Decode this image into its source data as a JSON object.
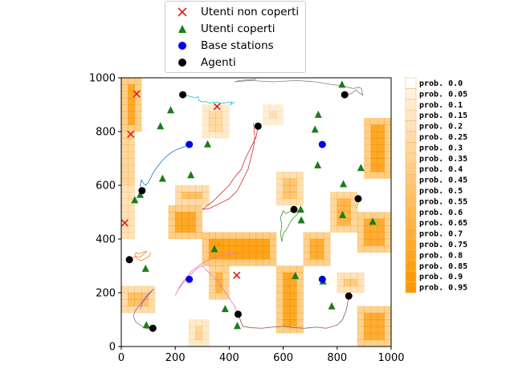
{
  "legend": {
    "items": [
      {
        "label": "Utenti non coperti",
        "marker": "x",
        "color": "#e31a1c"
      },
      {
        "label": "Utenti coperti",
        "marker": "triangle",
        "color": "#1a7d1a"
      },
      {
        "label": "Base stations",
        "marker": "circle",
        "color": "#0000ee"
      },
      {
        "label": "Agenti",
        "marker": "circle",
        "color": "#000000"
      }
    ]
  },
  "chart_data": {
    "type": "scatter",
    "xlim": [
      0,
      1000
    ],
    "ylim": [
      0,
      1000
    ],
    "x_ticks": [
      "0",
      "200",
      "400",
      "600",
      "800",
      "1000"
    ],
    "y_ticks": [
      "0",
      "200",
      "400",
      "600",
      "800",
      "1000"
    ],
    "grid": false,
    "heatmap": {
      "cell_size": 25,
      "base_color": "#ff9900",
      "high_regions": [
        {
          "x": [
            0,
            75
          ],
          "y": [
            800,
            1000
          ],
          "level": 0.85
        },
        {
          "x": [
            0,
            50
          ],
          "y": [
            600,
            800
          ],
          "level": 0.7
        },
        {
          "x": [
            0,
            50
          ],
          "y": [
            400,
            600
          ],
          "level": 0.5
        },
        {
          "x": [
            200,
            325
          ],
          "y": [
            525,
            600
          ],
          "level": 0.6
        },
        {
          "x": [
            175,
            300
          ],
          "y": [
            400,
            525
          ],
          "level": 0.85
        },
        {
          "x": [
            300,
            575
          ],
          "y": [
            300,
            425
          ],
          "level": 0.9
        },
        {
          "x": [
            325,
            400
          ],
          "y": [
            175,
            300
          ],
          "level": 0.75
        },
        {
          "x": [
            575,
            675
          ],
          "y": [
            50,
            300
          ],
          "level": 0.85
        },
        {
          "x": [
            675,
            775
          ],
          "y": [
            300,
            425
          ],
          "level": 0.8
        },
        {
          "x": [
            775,
            875
          ],
          "y": [
            425,
            575
          ],
          "level": 0.7
        },
        {
          "x": [
            875,
            1000
          ],
          "y": [
            350,
            500
          ],
          "level": 0.8
        },
        {
          "x": [
            900,
            1000
          ],
          "y": [
            625,
            850
          ],
          "level": 0.85
        },
        {
          "x": [
            800,
            900
          ],
          "y": [
            200,
            275
          ],
          "level": 0.5
        },
        {
          "x": [
            875,
            1000
          ],
          "y": [
            0,
            150
          ],
          "level": 0.8
        },
        {
          "x": [
            250,
            325
          ],
          "y": [
            0,
            100
          ],
          "level": 0.4
        },
        {
          "x": [
            0,
            125
          ],
          "y": [
            125,
            225
          ],
          "level": 0.6
        },
        {
          "x": [
            300,
            400
          ],
          "y": [
            775,
            900
          ],
          "level": 0.35
        },
        {
          "x": [
            575,
            675
          ],
          "y": [
            525,
            650
          ],
          "level": 0.55
        },
        {
          "x": [
            525,
            600
          ],
          "y": [
            825,
            900
          ],
          "level": 0.3
        }
      ],
      "colorbar_labels": [
        "prob. 0.0",
        "prob. 0.05",
        "prob. 0.1",
        "prob. 0.15",
        "prob. 0.2",
        "prob. 0.25",
        "prob. 0.3",
        "prob. 0.35",
        "prob. 0.4",
        "prob. 0.45",
        "prob. 0.5",
        "prob. 0.55",
        "prob. 0.6",
        "prob. 0.65",
        "prob. 0.7",
        "prob. 0.75",
        "prob. 0.8",
        "prob. 0.85",
        "prob. 0.9",
        "prob. 0.95"
      ]
    },
    "series": [
      {
        "name": "Utenti non coperti",
        "marker": "x",
        "color": "#e31a1c",
        "points": [
          [
            57,
            940
          ],
          [
            35,
            790
          ],
          [
            355,
            893
          ],
          [
            13,
            460
          ],
          [
            428,
            265
          ]
        ]
      },
      {
        "name": "Utenti coperti",
        "marker": "triangle",
        "color": "#1a7d1a",
        "points": [
          [
            183,
            880
          ],
          [
            145,
            820
          ],
          [
            320,
            753
          ],
          [
            153,
            625
          ],
          [
            258,
            638
          ],
          [
            50,
            545
          ],
          [
            70,
            565
          ],
          [
            90,
            290
          ],
          [
            345,
            363
          ],
          [
            93,
            80
          ],
          [
            385,
            140
          ],
          [
            430,
            77
          ],
          [
            645,
            263
          ],
          [
            665,
            510
          ],
          [
            667,
            470
          ],
          [
            748,
            243
          ],
          [
            780,
            150
          ],
          [
            730,
            863
          ],
          [
            718,
            808
          ],
          [
            728,
            675
          ],
          [
            823,
            605
          ],
          [
            820,
            490
          ],
          [
            888,
            665
          ],
          [
            932,
            465
          ],
          [
            818,
            975
          ]
        ]
      },
      {
        "name": "Base stations",
        "marker": "circle",
        "color": "#0000ee",
        "points": [
          [
            252,
            752
          ],
          [
            745,
            752
          ],
          [
            252,
            250
          ],
          [
            745,
            250
          ]
        ]
      },
      {
        "name": "Agenti",
        "marker": "circle",
        "color": "#000000",
        "points": [
          [
            228,
            937
          ],
          [
            507,
            820
          ],
          [
            77,
            580
          ],
          [
            30,
            323
          ],
          [
            117,
            68
          ],
          [
            433,
            120
          ],
          [
            640,
            510
          ],
          [
            878,
            550
          ],
          [
            843,
            188
          ],
          [
            828,
            937
          ]
        ]
      }
    ],
    "trajectories": [
      {
        "color": "#17becf",
        "points": [
          [
            228,
            937
          ],
          [
            260,
            930
          ],
          [
            275,
            925
          ],
          [
            285,
            930
          ],
          [
            288,
            915
          ],
          [
            300,
            910
          ],
          [
            310,
            912
          ],
          [
            330,
            905
          ],
          [
            340,
            910
          ],
          [
            360,
            908
          ],
          [
            370,
            905
          ],
          [
            410,
            910
          ],
          [
            405,
            900
          ],
          [
            420,
            910
          ]
        ]
      },
      {
        "color": "#7f7f7f",
        "points": [
          [
            828,
            937
          ],
          [
            850,
            940
          ],
          [
            870,
            955
          ],
          [
            880,
            945
          ],
          [
            890,
            940
          ],
          [
            895,
            935
          ],
          [
            890,
            960
          ],
          [
            880,
            965
          ],
          [
            860,
            960
          ],
          [
            820,
            970
          ],
          [
            780,
            975
          ],
          [
            720,
            985
          ],
          [
            650,
            990
          ],
          [
            560,
            985
          ],
          [
            480,
            990
          ],
          [
            420,
            985
          ],
          [
            440,
            990
          ],
          [
            500,
            995
          ]
        ]
      },
      {
        "color": "#d62728",
        "points": [
          [
            507,
            820
          ],
          [
            500,
            780
          ],
          [
            480,
            740
          ],
          [
            460,
            700
          ],
          [
            445,
            660
          ],
          [
            420,
            630
          ],
          [
            400,
            600
          ],
          [
            370,
            570
          ],
          [
            340,
            540
          ],
          [
            300,
            510
          ],
          [
            330,
            515
          ],
          [
            360,
            530
          ],
          [
            400,
            550
          ],
          [
            430,
            580
          ],
          [
            450,
            620
          ],
          [
            470,
            660
          ],
          [
            480,
            700
          ],
          [
            490,
            740
          ],
          [
            495,
            780
          ],
          [
            490,
            830
          ]
        ]
      },
      {
        "color": "#1f77b4",
        "points": [
          [
            77,
            580
          ],
          [
            70,
            600
          ],
          [
            75,
            620
          ],
          [
            80,
            610
          ],
          [
            90,
            600
          ],
          [
            100,
            610
          ],
          [
            110,
            630
          ],
          [
            120,
            650
          ],
          [
            135,
            670
          ],
          [
            150,
            690
          ],
          [
            170,
            710
          ],
          [
            190,
            725
          ],
          [
            210,
            735
          ],
          [
            230,
            742
          ],
          [
            245,
            750
          ]
        ]
      },
      {
        "color": "#ff7f0e",
        "points": [
          [
            30,
            323
          ],
          [
            40,
            330
          ],
          [
            55,
            335
          ],
          [
            70,
            332
          ],
          [
            85,
            345
          ],
          [
            95,
            355
          ],
          [
            80,
            350
          ],
          [
            65,
            345
          ],
          [
            55,
            350
          ],
          [
            50,
            340
          ],
          [
            60,
            325
          ],
          [
            75,
            320
          ],
          [
            90,
            328
          ],
          [
            105,
            338
          ],
          [
            110,
            350
          ]
        ]
      },
      {
        "color": "#9467bd",
        "points": [
          [
            117,
            68
          ],
          [
            100,
            65
          ],
          [
            85,
            70
          ],
          [
            70,
            80
          ],
          [
            55,
            90
          ],
          [
            45,
            110
          ],
          [
            50,
            130
          ],
          [
            65,
            150
          ],
          [
            80,
            170
          ],
          [
            95,
            190
          ],
          [
            110,
            205
          ],
          [
            120,
            215
          ],
          [
            100,
            190
          ],
          [
            80,
            165
          ],
          [
            70,
            140
          ]
        ]
      },
      {
        "color": "#e377c2",
        "points": [
          [
            433,
            120
          ],
          [
            420,
            150
          ],
          [
            400,
            180
          ],
          [
            380,
            210
          ],
          [
            360,
            240
          ],
          [
            340,
            260
          ],
          [
            320,
            280
          ],
          [
            300,
            300
          ],
          [
            280,
            290
          ],
          [
            260,
            270
          ],
          [
            240,
            250
          ],
          [
            225,
            230
          ],
          [
            210,
            210
          ],
          [
            200,
            190
          ],
          [
            220,
            230
          ],
          [
            260,
            280
          ],
          [
            300,
            310
          ],
          [
            340,
            330
          ],
          [
            380,
            340
          ],
          [
            430,
            345
          ]
        ]
      },
      {
        "color": "#8c564b",
        "points": [
          [
            433,
            120
          ],
          [
            450,
            75
          ],
          [
            480,
            70
          ],
          [
            520,
            68
          ],
          [
            560,
            72
          ],
          [
            600,
            75
          ],
          [
            640,
            70
          ],
          [
            680,
            68
          ],
          [
            720,
            72
          ],
          [
            760,
            68
          ],
          [
            800,
            80
          ],
          [
            820,
            100
          ],
          [
            835,
            140
          ],
          [
            843,
            188
          ]
        ]
      },
      {
        "color": "#2ca02c",
        "points": [
          [
            640,
            510
          ],
          [
            620,
            500
          ],
          [
            610,
            495
          ],
          [
            600,
            505
          ],
          [
            590,
            480
          ],
          [
            595,
            450
          ],
          [
            590,
            420
          ],
          [
            595,
            390
          ],
          [
            600,
            420
          ],
          [
            615,
            440
          ],
          [
            630,
            470
          ],
          [
            650,
            490
          ],
          [
            660,
            505
          ]
        ]
      },
      {
        "color": "#bcbd22",
        "points": [
          [
            878,
            550
          ],
          [
            880,
            535
          ],
          [
            875,
            525
          ],
          [
            870,
            515
          ]
        ]
      }
    ]
  }
}
